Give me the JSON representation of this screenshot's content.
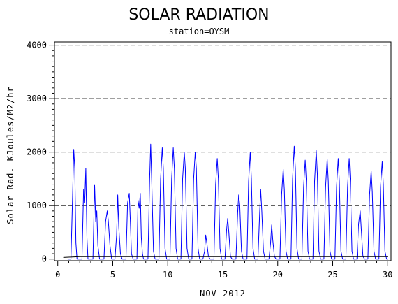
{
  "chart_data": {
    "type": "line",
    "title": "SOLAR RADIATION",
    "subtitle": "station=OYSM",
    "xlabel": "NOV 2012",
    "ylabel": "Solar Rad. KJoules/M2/hr",
    "xlim": [
      -0.3,
      30.3
    ],
    "ylim": [
      -30,
      4060
    ],
    "x_ticks": [
      0,
      5,
      10,
      15,
      20,
      25,
      30
    ],
    "y_ticks": [
      0,
      1000,
      2000,
      3000,
      4000
    ],
    "y_gridlines": [
      1000,
      2000,
      3000,
      4000
    ],
    "grid": "dashed horizontal",
    "series": [
      {
        "color": "#0000ff",
        "x": [
          0.9,
          1.2,
          1.35,
          1.45,
          1.55,
          1.65,
          1.75,
          2.0,
          2.2,
          2.35,
          2.45,
          2.55,
          2.65,
          2.75,
          3.0,
          3.2,
          3.35,
          3.45,
          3.55,
          3.65,
          3.8,
          4.0,
          4.2,
          4.35,
          4.5,
          4.6,
          4.75,
          4.9,
          5.0,
          5.2,
          5.35,
          5.45,
          5.55,
          5.7,
          5.85,
          6.0,
          6.2,
          6.35,
          6.5,
          6.6,
          6.7,
          6.85,
          7.0,
          7.2,
          7.3,
          7.4,
          7.5,
          7.6,
          7.7,
          7.8,
          8.0,
          8.2,
          8.35,
          8.45,
          8.55,
          8.7,
          8.85,
          9.0,
          9.2,
          9.35,
          9.5,
          9.6,
          9.75,
          9.9,
          10.0,
          10.2,
          10.35,
          10.5,
          10.6,
          10.75,
          10.9,
          11.0,
          11.2,
          11.35,
          11.5,
          11.6,
          11.75,
          11.9,
          12.0,
          12.2,
          12.35,
          12.5,
          12.6,
          12.75,
          12.9,
          13.0,
          13.2,
          13.35,
          13.45,
          13.55,
          13.7,
          13.85,
          14.0,
          14.2,
          14.35,
          14.5,
          14.6,
          14.75,
          14.9,
          15.0,
          15.2,
          15.35,
          15.45,
          15.55,
          15.7,
          15.85,
          16.0,
          16.2,
          16.35,
          16.45,
          16.55,
          16.7,
          16.85,
          17.0,
          17.2,
          17.35,
          17.5,
          17.6,
          17.75,
          17.9,
          18.0,
          18.2,
          18.35,
          18.45,
          18.55,
          18.7,
          18.85,
          19.0,
          19.2,
          19.35,
          19.45,
          19.55,
          19.7,
          19.85,
          20.0,
          20.2,
          20.35,
          20.5,
          20.6,
          20.75,
          20.9,
          21.0,
          21.2,
          21.35,
          21.5,
          21.6,
          21.75,
          21.9,
          22.0,
          22.2,
          22.35,
          22.5,
          22.6,
          22.75,
          22.9,
          23.0,
          23.2,
          23.35,
          23.5,
          23.6,
          23.75,
          23.9,
          24.0,
          24.2,
          24.35,
          24.5,
          24.6,
          24.75,
          24.9,
          25.0,
          25.2,
          25.35,
          25.5,
          25.6,
          25.75,
          25.9,
          26.0,
          26.2,
          26.35,
          26.5,
          26.6,
          26.75,
          26.9,
          27.0,
          27.2,
          27.35,
          27.5,
          27.6,
          27.75,
          27.9,
          28.0,
          28.2,
          28.35,
          28.5,
          28.6,
          28.75,
          28.9,
          29.0,
          29.2,
          29.35,
          29.5,
          29.6,
          29.75,
          29.9,
          30.0
        ],
        "y": [
          0,
          0,
          1200,
          2050,
          1700,
          300,
          0,
          0,
          0,
          1300,
          1050,
          1700,
          400,
          0,
          0,
          0,
          1380,
          700,
          900,
          250,
          0,
          0,
          0,
          700,
          900,
          700,
          250,
          0,
          0,
          0,
          450,
          1200,
          600,
          100,
          0,
          0,
          0,
          1050,
          1230,
          700,
          100,
          0,
          0,
          0,
          1100,
          950,
          1230,
          400,
          100,
          0,
          0,
          0,
          1500,
          2150,
          1400,
          150,
          0,
          0,
          0,
          1500,
          2080,
          1700,
          200,
          0,
          0,
          0,
          1500,
          2080,
          1700,
          200,
          0,
          0,
          0,
          1500,
          2000,
          1700,
          200,
          0,
          0,
          0,
          1500,
          2000,
          1700,
          200,
          0,
          0,
          0,
          150,
          450,
          300,
          50,
          0,
          0,
          0,
          1400,
          1880,
          1500,
          200,
          0,
          0,
          0,
          550,
          760,
          500,
          50,
          0,
          0,
          0,
          850,
          1200,
          1000,
          150,
          0,
          0,
          0,
          1450,
          2000,
          1500,
          200,
          0,
          0,
          0,
          850,
          1300,
          900,
          150,
          0,
          0,
          0,
          300,
          640,
          350,
          50,
          0,
          0,
          0,
          1200,
          1680,
          1300,
          150,
          0,
          0,
          0,
          1500,
          2110,
          1700,
          200,
          0,
          0,
          0,
          1350,
          1850,
          1450,
          150,
          0,
          0,
          0,
          1450,
          2030,
          1600,
          150,
          0,
          0,
          0,
          1350,
          1870,
          1450,
          150,
          0,
          0,
          0,
          1350,
          1880,
          1450,
          150,
          0,
          0,
          0,
          1350,
          1880,
          1450,
          150,
          0,
          0,
          0,
          650,
          900,
          550,
          50,
          0,
          0,
          0,
          1200,
          1650,
          1250,
          150,
          0,
          0,
          0,
          1350,
          1820,
          1400,
          150,
          0,
          0
        ]
      },
      {
        "color": "#000000",
        "x": [
          0.5,
          2,
          4,
          6,
          8,
          10,
          12,
          14,
          16,
          18,
          20,
          22,
          24,
          26,
          28,
          30
        ],
        "y": [
          30,
          45,
          45,
          45,
          45,
          45,
          45,
          45,
          45,
          45,
          45,
          45,
          45,
          45,
          45,
          45
        ]
      }
    ]
  }
}
